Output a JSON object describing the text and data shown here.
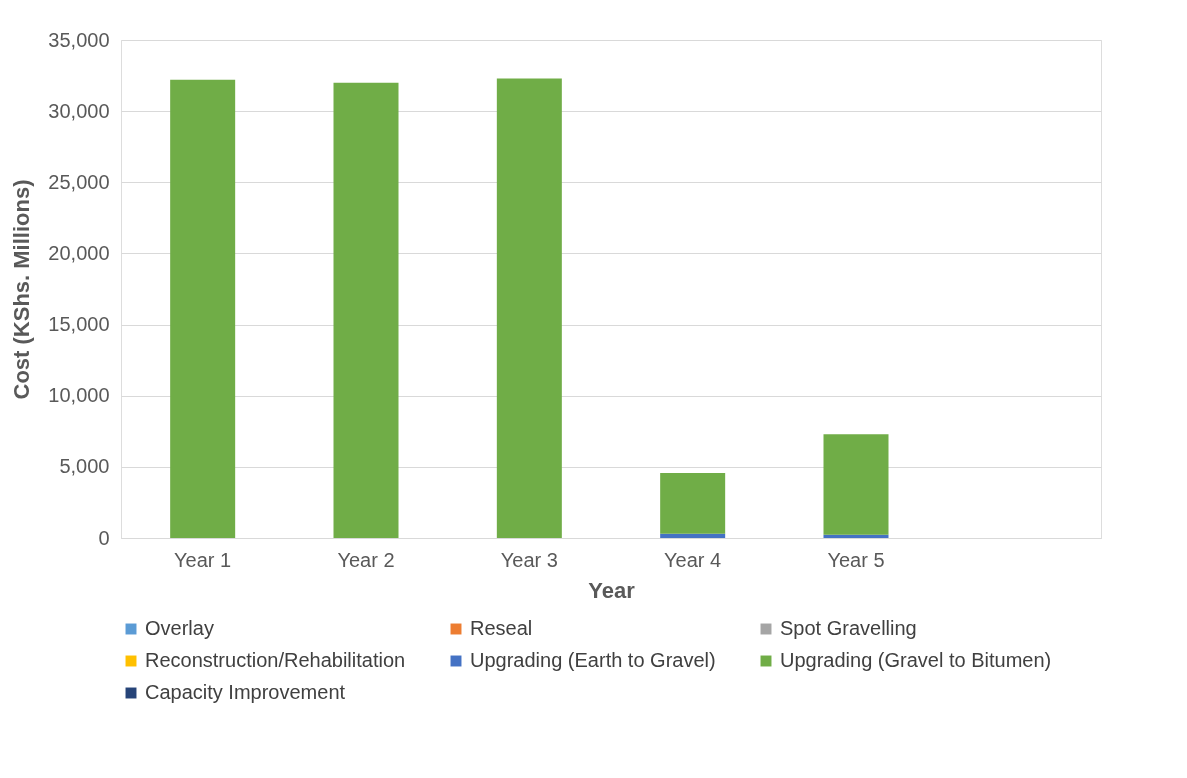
{
  "chart_data": {
    "type": "bar",
    "stacked": true,
    "xlabel": "Year",
    "ylabel": "Cost (KShs. Millions)",
    "categories": [
      "Year 1",
      "Year 2",
      "Year 3",
      "Year 4",
      "Year 5",
      null
    ],
    "series": [
      {
        "name": "Overlay",
        "color": "#5b9bd5",
        "values": [
          0,
          0,
          0,
          0,
          0,
          null
        ]
      },
      {
        "name": "Reseal",
        "color": "#ed7d31",
        "values": [
          0,
          0,
          0,
          0,
          0,
          null
        ]
      },
      {
        "name": "Spot Gravelling",
        "color": "#a5a5a5",
        "values": [
          0,
          0,
          0,
          0,
          0,
          null
        ]
      },
      {
        "name": "Reconstruction/Rehabilitation",
        "color": "#ffc000",
        "values": [
          0,
          0,
          0,
          0,
          0,
          null
        ]
      },
      {
        "name": "Upgrading (Earth to Gravel)",
        "color": "#4472c4",
        "values": [
          0,
          0,
          0,
          300,
          230,
          null
        ]
      },
      {
        "name": "Upgrading (Gravel to Bitumen)",
        "color": "#70ad47",
        "values": [
          32200,
          32000,
          32300,
          4270,
          7070,
          null
        ]
      },
      {
        "name": "Capacity Improvement",
        "color": "#264478",
        "values": [
          0,
          0,
          0,
          0,
          0,
          null
        ]
      }
    ],
    "ylim": [
      0,
      35000
    ],
    "yticks": [
      0,
      {
        "value": 5000,
        "label": "5,000"
      },
      {
        "value": 10000,
        "label": "10,000"
      },
      {
        "value": 15000,
        "label": "15,000"
      },
      {
        "value": 20000,
        "label": "20,000"
      },
      {
        "value": 25000,
        "label": "25,000"
      },
      {
        "value": 30000,
        "label": "30,000"
      },
      {
        "value": 35000,
        "label": "35,000"
      }
    ],
    "grid": "y",
    "legend": "bottom"
  }
}
